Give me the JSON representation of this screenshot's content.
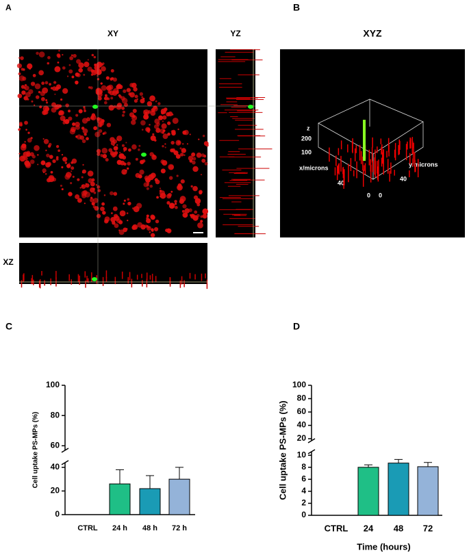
{
  "panels": {
    "A": {
      "label": "A",
      "xy": "XY",
      "yz": "YZ",
      "xz": "XZ"
    },
    "B": {
      "label": "B",
      "title": "XYZ",
      "z_label": "z",
      "z_ticks": [
        200,
        100
      ],
      "x_label": "x/microns",
      "y_label": "y/microns",
      "x_ticks": [
        40,
        0
      ],
      "y_ticks": [
        40,
        0
      ]
    }
  },
  "chart_data": [
    {
      "type": "bar",
      "label": "C",
      "y_label": "Cell uptake PS-MPs (%)",
      "categories": [
        "CTRL",
        "24 h",
        "48 h",
        "72 h"
      ],
      "values": [
        0,
        26,
        22,
        30
      ],
      "errors": [
        0,
        12,
        11,
        10
      ],
      "colors": [
        "#1fbf86",
        "#1fbf86",
        "#1a9bb5",
        "#94b3d9"
      ],
      "ysegments": [
        {
          "ylim": [
            0,
            44
          ],
          "yticks": [
            0,
            20,
            40
          ]
        },
        {
          "ylim": [
            57,
            100
          ],
          "yticks": [
            60,
            80,
            100
          ]
        }
      ]
    },
    {
      "type": "bar",
      "label": "D",
      "y_label": "Cell uptake PS-MPs (%)",
      "x_label": "Time (hours)",
      "categories": [
        "CTRL",
        "24",
        "48",
        "72"
      ],
      "values": [
        0,
        8.0,
        8.7,
        8.1
      ],
      "errors": [
        0,
        0.4,
        0.6,
        0.7
      ],
      "colors": [
        "#1fbf86",
        "#1fbf86",
        "#1a9bb5",
        "#94b3d9"
      ],
      "ysegments": [
        {
          "ylim": [
            0,
            10.6
          ],
          "yticks": [
            0,
            2,
            4,
            6,
            8,
            10
          ]
        },
        {
          "ylim": [
            17,
            100
          ],
          "yticks": [
            20,
            40,
            60,
            80,
            100
          ]
        }
      ]
    }
  ]
}
